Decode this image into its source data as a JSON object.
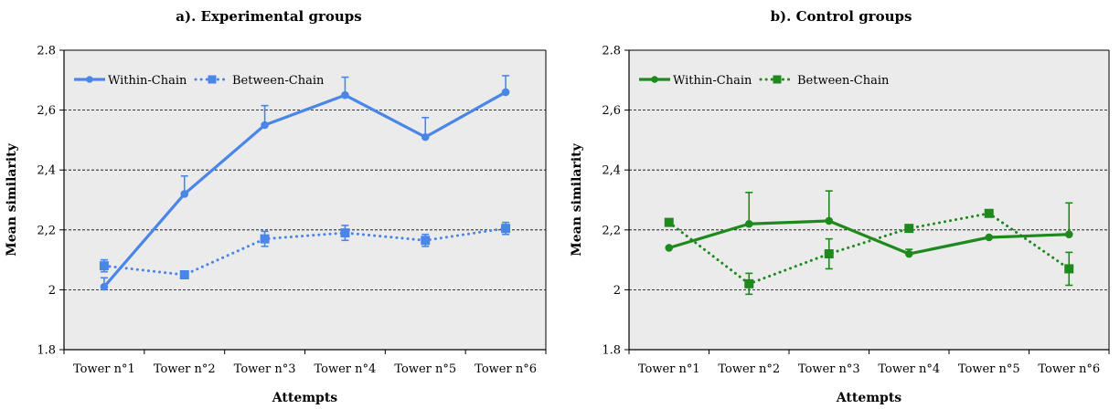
{
  "chart_data": [
    {
      "type": "line",
      "title": "a). Experimental groups",
      "xlabel": "Attempts",
      "ylabel": "Mean similarity",
      "categories": [
        "Tower n°1",
        "Tower n°2",
        "Tower n°3",
        "Tower n°4",
        "Tower n°5",
        "Tower n°6"
      ],
      "ylim": [
        1.8,
        2.8
      ],
      "yticks": [
        "1.8",
        "2",
        "2,2",
        "2,4",
        "2,6",
        "2.8"
      ],
      "grid": "horizontal dashed",
      "legend": "top-left",
      "color": "#4a86e8",
      "series": [
        {
          "name": "Within-Chain",
          "style": "solid",
          "marker": "circle",
          "values": [
            2.01,
            2.32,
            2.55,
            2.65,
            2.51,
            2.66
          ],
          "errors": [
            0.03,
            0.06,
            0.065,
            0.06,
            0.065,
            0.055
          ]
        },
        {
          "name": "Between-Chain",
          "style": "dotted",
          "marker": "square",
          "values": [
            2.08,
            2.05,
            2.17,
            2.19,
            2.165,
            2.205
          ],
          "errors": [
            0.02,
            0.01,
            0.025,
            0.025,
            0.02,
            0.02
          ]
        }
      ]
    },
    {
      "type": "line",
      "title": "b). Control groups",
      "xlabel": "Attempts",
      "ylabel": "Mean similarity",
      "categories": [
        "Tower n°1",
        "Tower n°2",
        "Tower n°3",
        "Tower n°4",
        "Tower n°5",
        "Tower n°6"
      ],
      "ylim": [
        1.8,
        2.8
      ],
      "yticks": [
        "1.8",
        "2",
        "2,2",
        "2,4",
        "2,6",
        "2.8"
      ],
      "grid": "horizontal dashed",
      "legend": "top-left",
      "color": "#1e8a1e",
      "series": [
        {
          "name": "Within-Chain",
          "style": "solid",
          "marker": "circle",
          "values": [
            2.14,
            2.22,
            2.23,
            2.12,
            2.175,
            2.185
          ],
          "errors": [
            0.0,
            0.105,
            0.1,
            0.015,
            0.0,
            0.105
          ]
        },
        {
          "name": "Between-Chain",
          "style": "dotted",
          "marker": "square",
          "values": [
            2.225,
            2.02,
            2.12,
            2.205,
            2.255,
            2.07
          ],
          "errors": [
            0.0,
            0.035,
            0.05,
            0.0,
            0.0,
            0.055
          ]
        }
      ]
    }
  ]
}
